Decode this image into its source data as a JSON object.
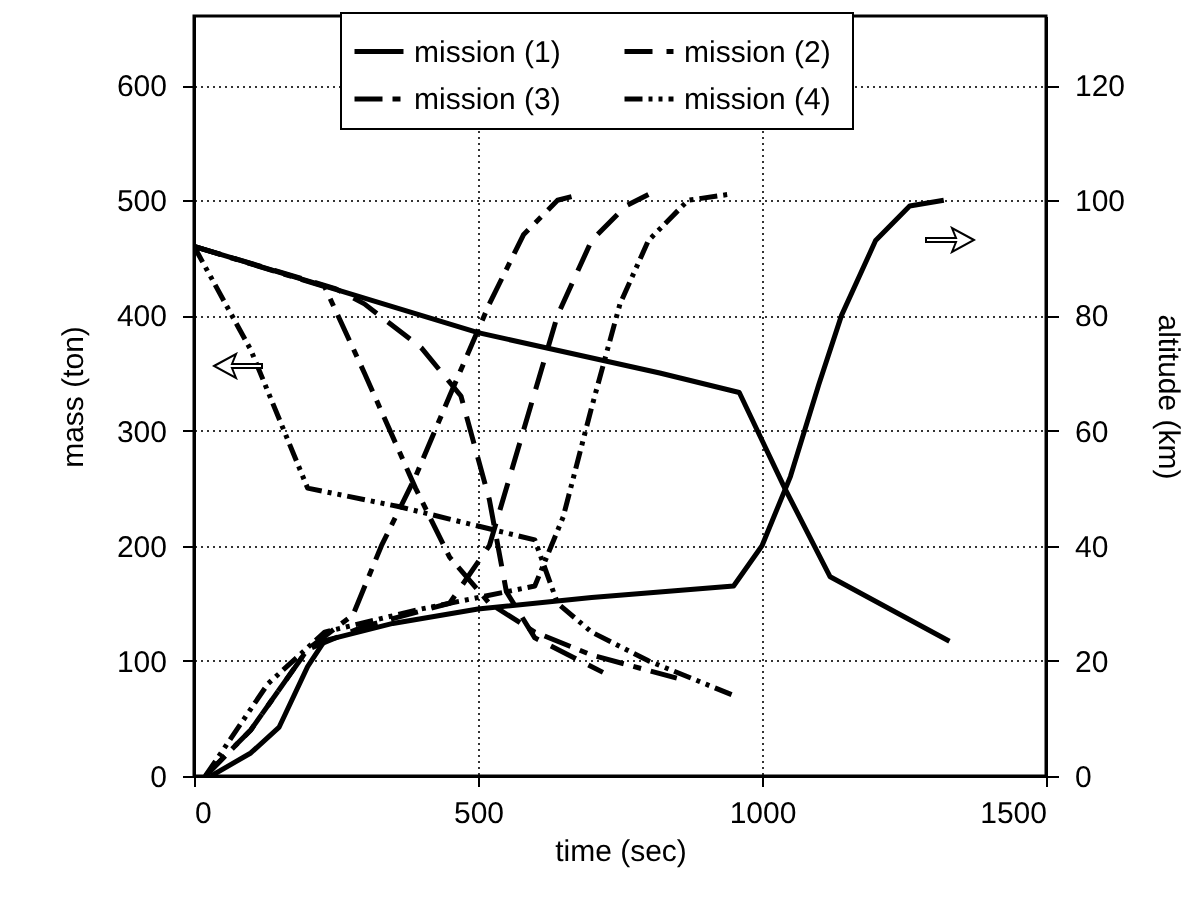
{
  "chart_data": {
    "type": "line",
    "xlabel": "time  (sec)",
    "ylabel": "mass  (ton)",
    "y2label": "altitude  (km)",
    "xlim": [
      0,
      1500
    ],
    "xticks": [
      0,
      500,
      1000,
      1500
    ],
    "ylim": [
      0,
      660
    ],
    "yticks": [
      0,
      100,
      200,
      300,
      400,
      500,
      600
    ],
    "y2lim": [
      0,
      132
    ],
    "y2ticks": [
      0,
      20,
      40,
      60,
      80,
      100,
      120
    ],
    "grid": true,
    "legend": "top",
    "marker": "none",
    "series": [
      {
        "name": "mission  (1)",
        "color": "#000000",
        "line_style": "solid",
        "x": [
          0,
          200,
          500,
          820,
          960,
          1040,
          1120,
          1330
        ],
        "values": [
          460,
          430,
          385,
          350,
          333,
          250,
          173,
          117
        ]
      },
      {
        "name": "mission  (2)",
        "color": "#000000",
        "line_style": "dashed",
        "x": [
          0,
          250,
          300,
          400,
          470,
          520,
          550,
          600,
          720
        ],
        "values": [
          460,
          423,
          410,
          372,
          330,
          240,
          160,
          120,
          90
        ]
      },
      {
        "name": "mission  (3)",
        "color": "#000000",
        "line_style": "dashed",
        "x": [
          0,
          230,
          300,
          390,
          450,
          520,
          600,
          700,
          850
        ],
        "values": [
          460,
          425,
          350,
          250,
          190,
          150,
          125,
          105,
          85
        ]
      },
      {
        "name": "mission  (4)",
        "color": "#000000",
        "line_style": "dotted",
        "x": [
          0,
          100,
          200,
          360,
          600,
          640,
          700,
          800,
          950
        ],
        "values": [
          460,
          370,
          250,
          234,
          205,
          150,
          125,
          100,
          70
        ]
      },
      {
        "color": "#000000",
        "line_style": "solid",
        "axis": "y2",
        "x": [
          30,
          100,
          150,
          200,
          230,
          350,
          500,
          700,
          950,
          1000,
          1050,
          1100,
          1140,
          1200,
          1260,
          1320
        ],
        "values": [
          0,
          4,
          8.5,
          19,
          23.5,
          26.5,
          29,
          31,
          33,
          40,
          52,
          68,
          80,
          93,
          99,
          100
        ]
      },
      {
        "color": "#000000",
        "line_style": "dashed",
        "axis": "y2",
        "x": [
          20,
          100,
          200,
          300,
          450,
          520,
          580,
          640,
          700,
          760,
          800
        ],
        "values": [
          0,
          8,
          22,
          26,
          30,
          40,
          60,
          80,
          93,
          99,
          101
        ]
      },
      {
        "color": "#000000",
        "line_style": "dashed",
        "axis": "y2",
        "x": [
          20,
          100,
          200,
          280,
          330,
          390,
          450,
          520,
          580,
          640,
          680
        ],
        "values": [
          0,
          8,
          22,
          28,
          40,
          52,
          66,
          82,
          94,
          100,
          101
        ]
      },
      {
        "color": "#000000",
        "line_style": "dotted",
        "axis": "y2",
        "x": [
          20,
          130,
          230,
          400,
          600,
          650,
          700,
          750,
          800,
          870,
          940
        ],
        "values": [
          0,
          16,
          25,
          29,
          33,
          45,
          64,
          82,
          93,
          100,
          101
        ]
      }
    ]
  }
}
